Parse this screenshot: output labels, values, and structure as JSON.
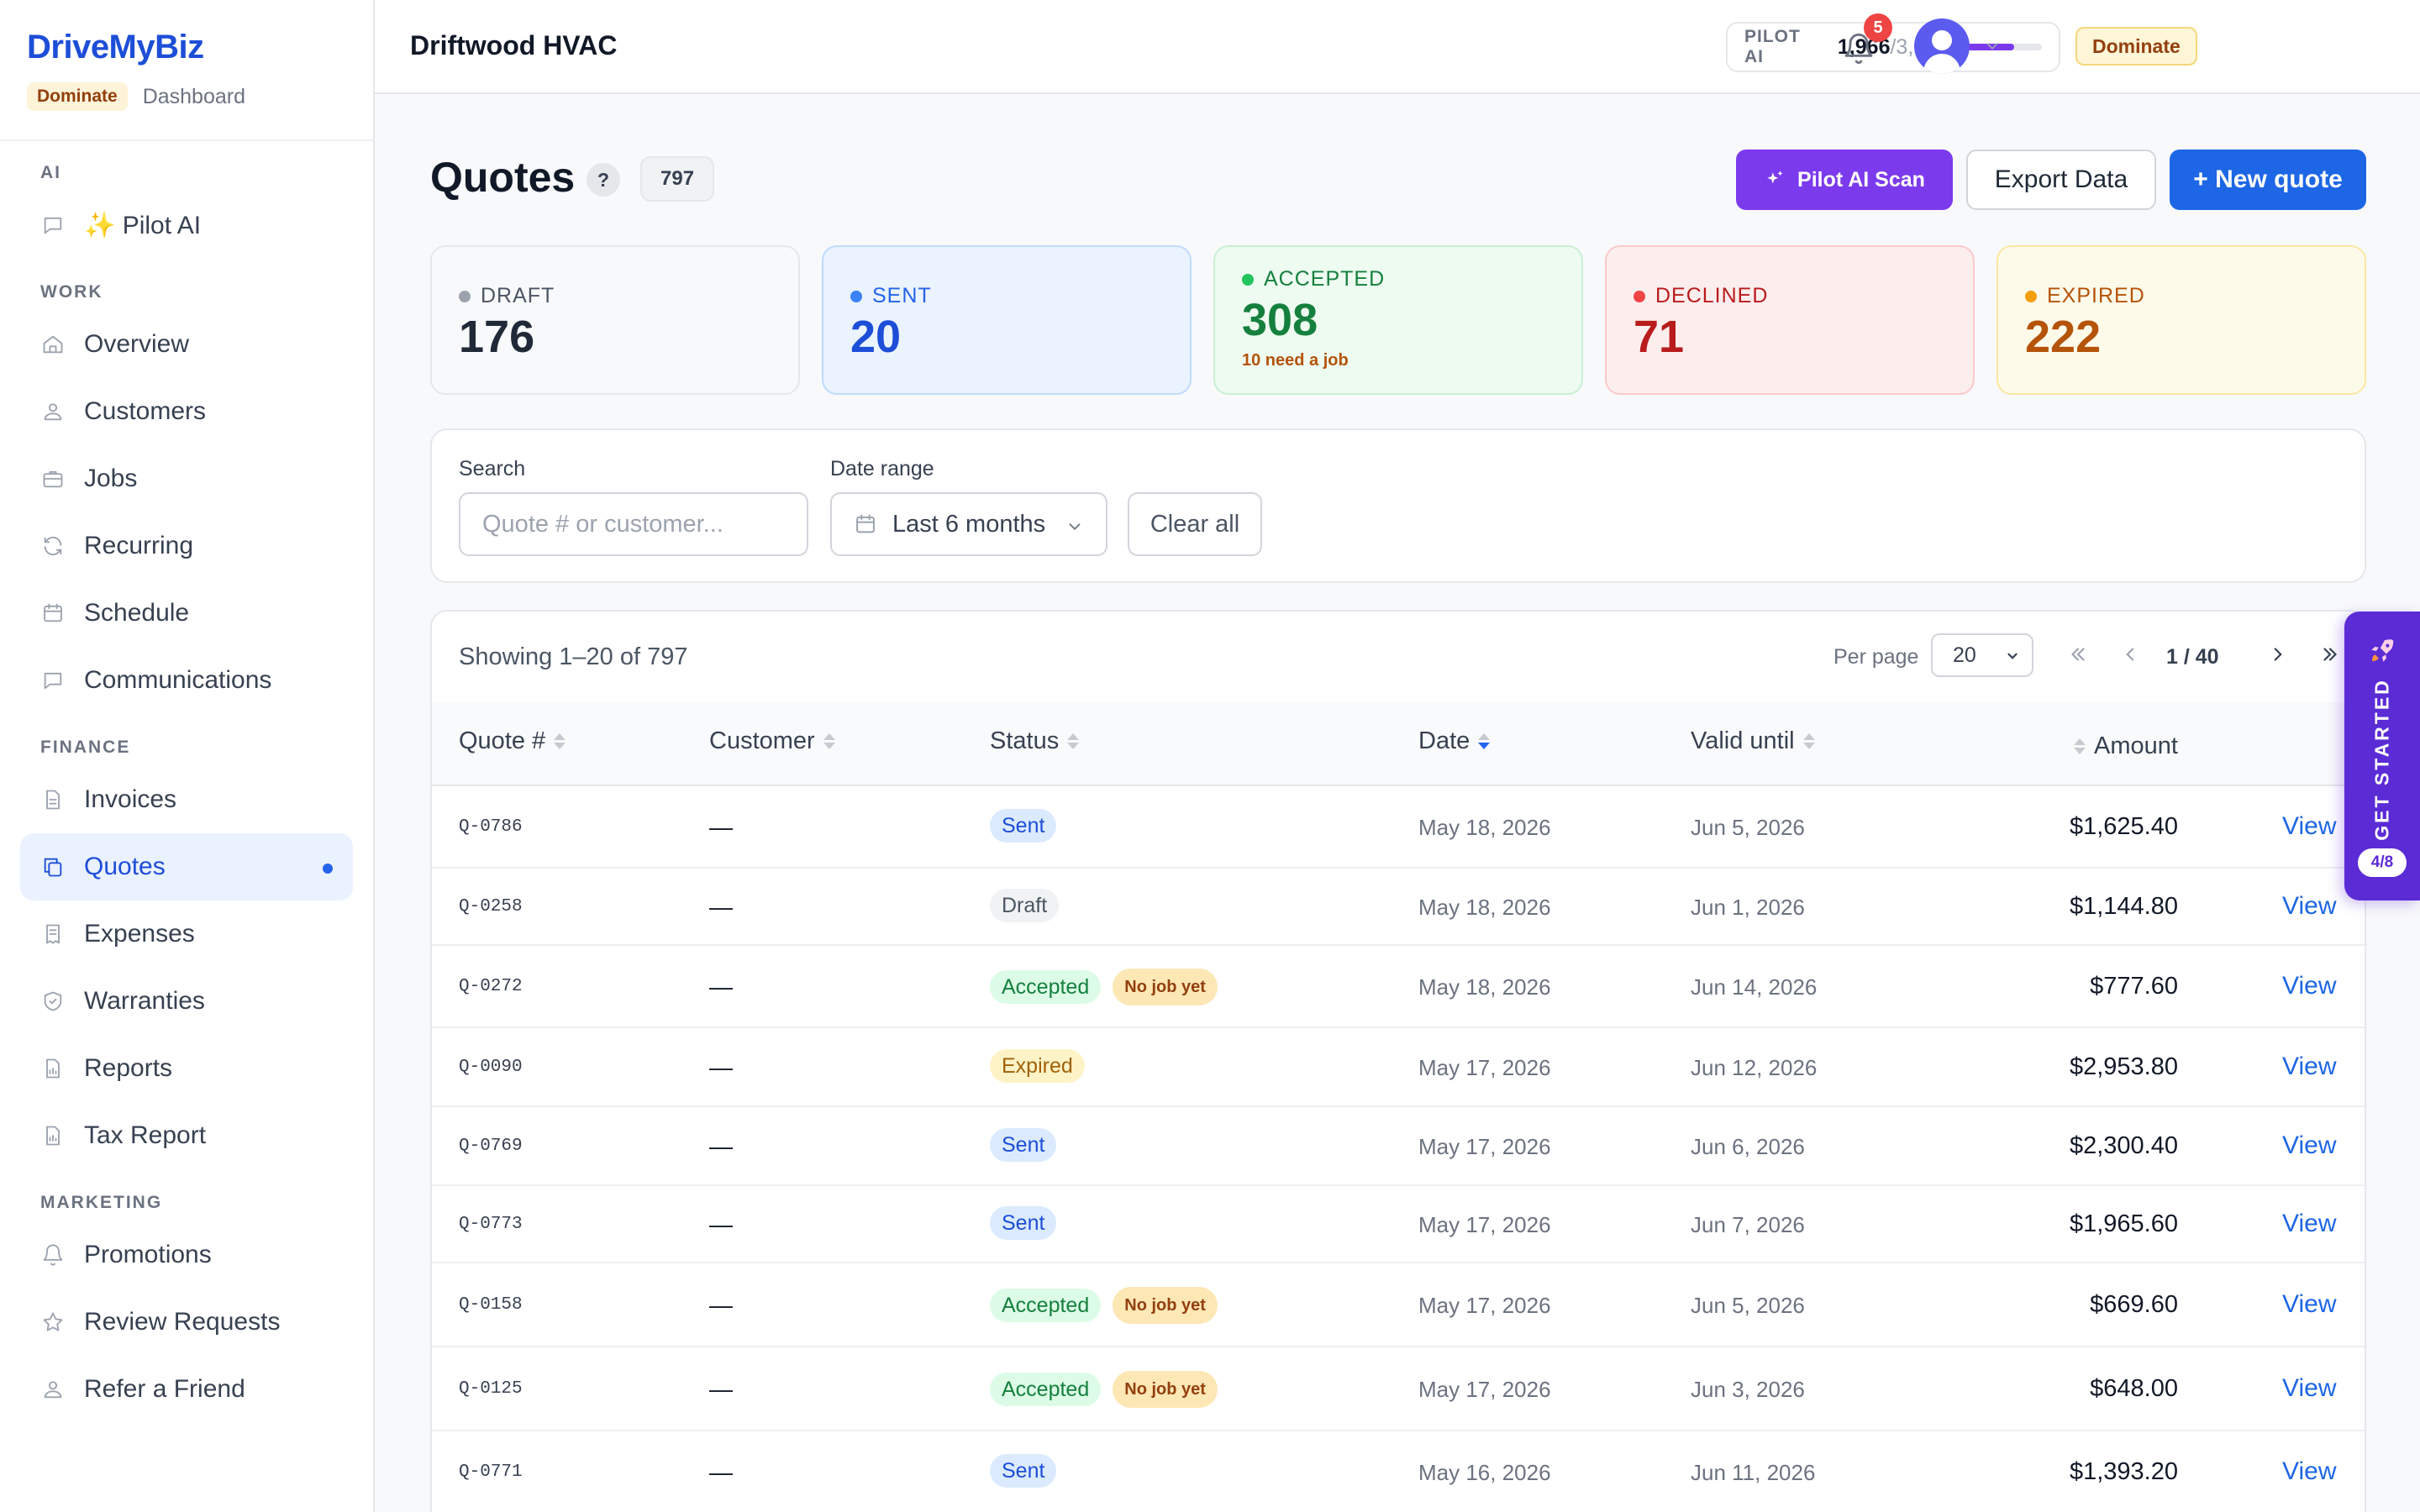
{
  "app": {
    "brand": "DriveMyBiz",
    "plan": "Dominate",
    "brand_sub": "Dashboard"
  },
  "sidebar": {
    "sections": [
      {
        "title": "AI",
        "items": [
          {
            "label": "✨ Pilot AI",
            "icon": "chat-icon"
          }
        ]
      },
      {
        "title": "WORK",
        "items": [
          {
            "label": "Overview",
            "icon": "home-icon"
          },
          {
            "label": "Customers",
            "icon": "users-icon"
          },
          {
            "label": "Jobs",
            "icon": "briefcase-icon"
          },
          {
            "label": "Recurring",
            "icon": "refresh-icon"
          },
          {
            "label": "Schedule",
            "icon": "calendar-icon"
          },
          {
            "label": "Communications",
            "icon": "chat-icon"
          }
        ]
      },
      {
        "title": "FINANCE",
        "items": [
          {
            "label": "Invoices",
            "icon": "document-icon"
          },
          {
            "label": "Quotes",
            "icon": "copy-icon",
            "active": true
          },
          {
            "label": "Expenses",
            "icon": "receipt-icon"
          },
          {
            "label": "Warranties",
            "icon": "shield-icon"
          },
          {
            "label": "Reports",
            "icon": "report-icon"
          },
          {
            "label": "Tax Report",
            "icon": "report-icon"
          }
        ]
      },
      {
        "title": "MARKETING",
        "items": [
          {
            "label": "Promotions",
            "icon": "bell-icon"
          },
          {
            "label": "Review Requests",
            "icon": "star-icon"
          },
          {
            "label": "Refer a Friend",
            "icon": "users-icon"
          }
        ]
      }
    ]
  },
  "header": {
    "company": "Driftwood HVAC",
    "ai_label": "PILOT AI",
    "ai_used": "1,966",
    "ai_total": "/3,000",
    "ai_fraction": 0.655,
    "plan_badge": "Dominate",
    "notifications": "5"
  },
  "page": {
    "title": "Quotes",
    "help": "?",
    "total_count": "797",
    "btn_ai": "Pilot AI Scan",
    "btn_export": "Export Data",
    "btn_new": "+ New quote"
  },
  "cards": [
    {
      "label": "DRAFT",
      "value": "176",
      "sub": "",
      "bg": "#f8f9fb",
      "border": "#e5e7eb",
      "dot": "#9ca3af",
      "label_color": "#4b5563",
      "value_color": "#1f2937"
    },
    {
      "label": "SENT",
      "value": "20",
      "sub": "",
      "bg": "#eaf3fe",
      "border": "#bfdbfe",
      "dot": "#3b82f6",
      "label_color": "#2563eb",
      "value_color": "#1d4ed8"
    },
    {
      "label": "ACCEPTED",
      "value": "308",
      "sub": "10 need a job",
      "bg": "#eefbf1",
      "border": "#c8f0d3",
      "dot": "#22c55e",
      "label_color": "#15803d",
      "value_color": "#15803d"
    },
    {
      "label": "DECLINED",
      "value": "71",
      "sub": "",
      "bg": "#fdeeee",
      "border": "#fbcaca",
      "dot": "#ef4444",
      "label_color": "#b91c1c",
      "value_color": "#b91c1c"
    },
    {
      "label": "EXPIRED",
      "value": "222",
      "sub": "",
      "bg": "#fefaea",
      "border": "#fbe7a1",
      "dot": "#f59e0b",
      "label_color": "#b45309",
      "value_color": "#b45309"
    }
  ],
  "filters": {
    "search_label": "Search",
    "search_placeholder": "Quote # or customer...",
    "date_label": "Date range",
    "date_value": "Last 6 months",
    "clear": "Clear all"
  },
  "table": {
    "showing": "Showing 1–20 of 797",
    "per_page_label": "Per page",
    "per_page_value": "20",
    "page_label": "1 / 40",
    "columns": [
      "Quote #",
      "Customer",
      "Status",
      "Date",
      "Valid until",
      "Amount"
    ],
    "sorted_column": "Date",
    "rows": [
      {
        "quote": "Q-0786",
        "customer": "—",
        "status": "Sent",
        "note": "",
        "date": "May 18, 2026",
        "valid": "Jun 5, 2026",
        "amount": "$1,625.40",
        "action": "View"
      },
      {
        "quote": "Q-0258",
        "customer": "—",
        "status": "Draft",
        "note": "",
        "date": "May 18, 2026",
        "valid": "Jun 1, 2026",
        "amount": "$1,144.80",
        "action": "View"
      },
      {
        "quote": "Q-0272",
        "customer": "—",
        "status": "Accepted",
        "note": "No job yet",
        "date": "May 18, 2026",
        "valid": "Jun 14, 2026",
        "amount": "$777.60",
        "action": "View"
      },
      {
        "quote": "Q-0090",
        "customer": "—",
        "status": "Expired",
        "note": "",
        "date": "May 17, 2026",
        "valid": "Jun 12, 2026",
        "amount": "$2,953.80",
        "action": "View"
      },
      {
        "quote": "Q-0769",
        "customer": "—",
        "status": "Sent",
        "note": "",
        "date": "May 17, 2026",
        "valid": "Jun 6, 2026",
        "amount": "$2,300.40",
        "action": "View"
      },
      {
        "quote": "Q-0773",
        "customer": "—",
        "status": "Sent",
        "note": "",
        "date": "May 17, 2026",
        "valid": "Jun 7, 2026",
        "amount": "$1,965.60",
        "action": "View"
      },
      {
        "quote": "Q-0158",
        "customer": "—",
        "status": "Accepted",
        "note": "No job yet",
        "date": "May 17, 2026",
        "valid": "Jun 5, 2026",
        "amount": "$669.60",
        "action": "View"
      },
      {
        "quote": "Q-0125",
        "customer": "—",
        "status": "Accepted",
        "note": "No job yet",
        "date": "May 17, 2026",
        "valid": "Jun 3, 2026",
        "amount": "$648.00",
        "action": "View"
      },
      {
        "quote": "Q-0771",
        "customer": "—",
        "status": "Sent",
        "note": "",
        "date": "May 16, 2026",
        "valid": "Jun 11, 2026",
        "amount": "$1,393.20",
        "action": "View"
      }
    ]
  },
  "get_started": {
    "label": "GET STARTED",
    "progress": "4/8"
  }
}
